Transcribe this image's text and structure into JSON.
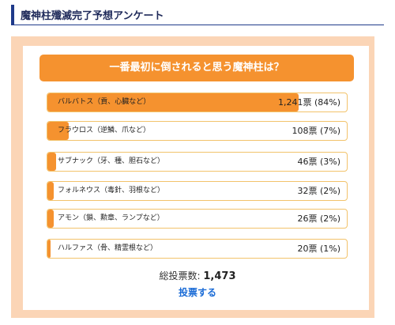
{
  "header": {
    "title": "魔神柱殲滅完了予想アンケート"
  },
  "poll": {
    "question": "一番最初に倒されると思う魔神柱は？",
    "options": [
      {
        "label": "バルバトス（貢、心臓など）",
        "votes": "1,241",
        "unit": "票",
        "percent": "(84%)",
        "share": 0.84
      },
      {
        "label": "フラウロス（逆鱗、爪など）",
        "votes": "108",
        "unit": "票",
        "percent": "(7%)",
        "share": 0.07
      },
      {
        "label": "サブナック（牙、種、胆石など）",
        "votes": "46",
        "unit": "票",
        "percent": "(3%)",
        "share": 0.03
      },
      {
        "label": "フォルネウス（毒針、羽根など）",
        "votes": "32",
        "unit": "票",
        "percent": "(2%)",
        "share": 0.02
      },
      {
        "label": "アモン（鎖、勲章、ランプなど）",
        "votes": "26",
        "unit": "票",
        "percent": "(2%)",
        "share": 0.02
      },
      {
        "label": "ハルファス（骨、精霊根など）",
        "votes": "20",
        "unit": "票",
        "percent": "(1%)",
        "share": 0.01
      }
    ],
    "total_label": "総投票数:",
    "total_value": "1,473",
    "vote_label": "投票する"
  },
  "colors": {
    "accent": "#f5922f",
    "frame": "#fbd5b6",
    "border": "#f2c36b",
    "header_rule": "#1f3a8a",
    "link": "#1a6bd6"
  }
}
